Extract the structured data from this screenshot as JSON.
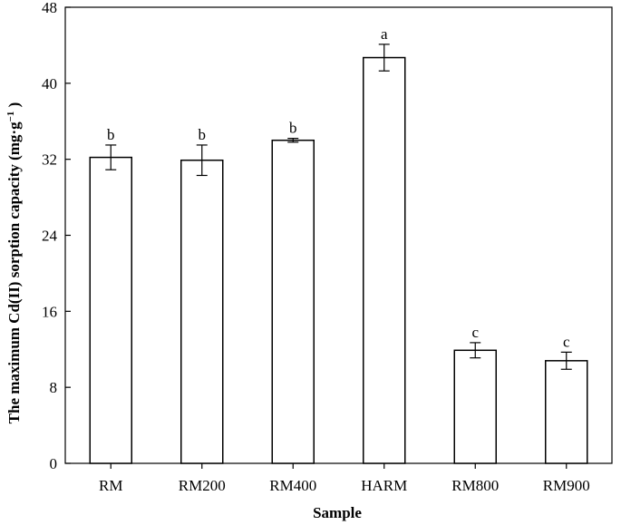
{
  "chart_data": {
    "type": "bar",
    "title": "",
    "xlabel": "Sample",
    "ylabel_main": "The maximum Cd(II) sorption capacity (mg·g",
    "ylabel_sup": "−1",
    "ylabel_end": " )",
    "categories": [
      "RM",
      "RM200",
      "RM400",
      "HARM",
      "RM800",
      "RM900"
    ],
    "values": [
      32.2,
      31.9,
      34.0,
      42.7,
      11.9,
      10.8
    ],
    "errors": [
      1.3,
      1.6,
      0.2,
      1.4,
      0.8,
      0.9
    ],
    "significance": [
      "b",
      "b",
      "b",
      "a",
      "c",
      "c"
    ],
    "ylim": [
      0,
      48
    ],
    "yticks": [
      0,
      8,
      16,
      24,
      32,
      40,
      48
    ],
    "grid": false,
    "bar_fill": "#ffffff",
    "bar_stroke": "#000000"
  }
}
